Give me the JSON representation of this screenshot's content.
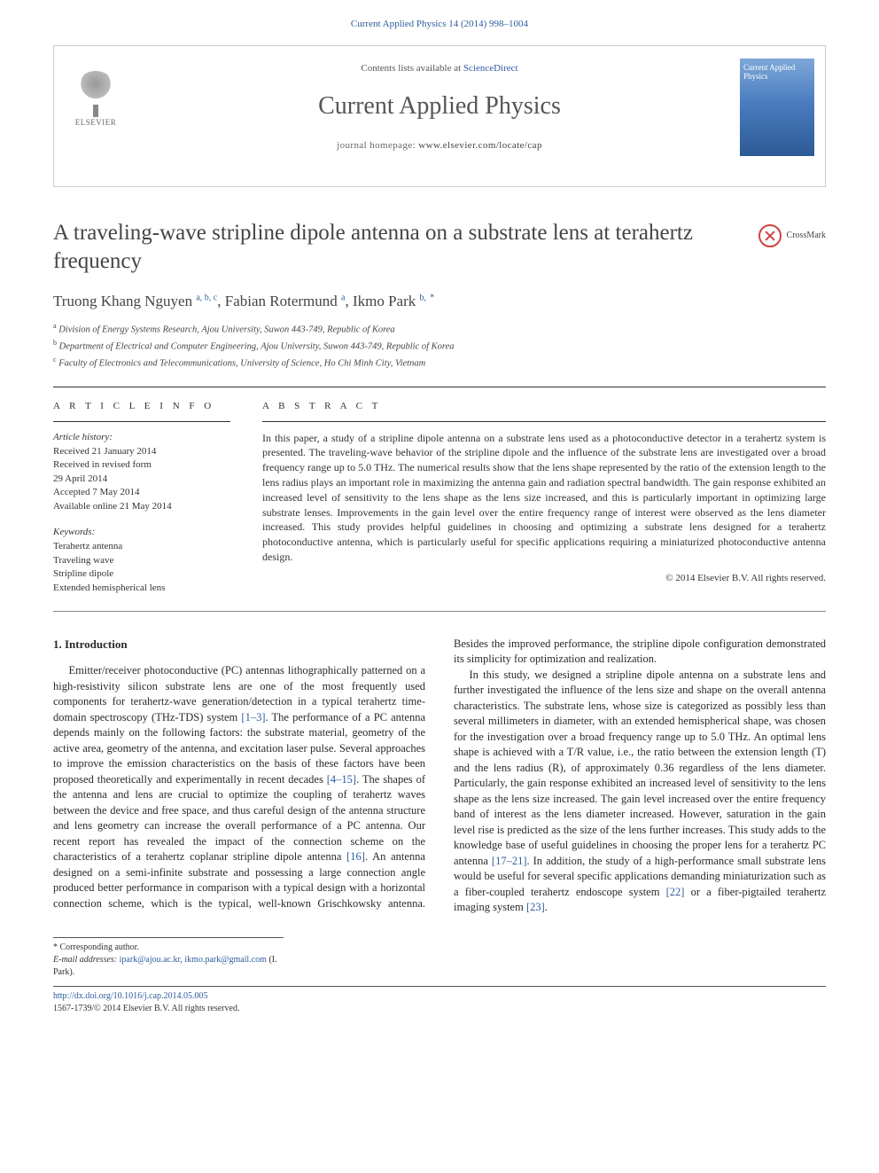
{
  "header": {
    "citation": "Current Applied Physics 14 (2014) 998–1004",
    "contents_prefix": "Contents lists available at ",
    "contents_link": "ScienceDirect",
    "journal": "Current Applied Physics",
    "homepage_prefix": "journal homepage: ",
    "homepage_url": "www.elsevier.com/locate/cap",
    "elsevier_label": "ELSEVIER",
    "cover_title": "Current Applied Physics"
  },
  "crossmark": "CrossMark",
  "title": "A traveling-wave stripline dipole antenna on a substrate lens at terahertz frequency",
  "authors": {
    "a1_name": "Truong Khang Nguyen",
    "a1_aff": "a, b, c",
    "a2_name": "Fabian Rotermund",
    "a2_aff": "a",
    "a3_name": "Ikmo Park",
    "a3_aff": "b,",
    "star": "*"
  },
  "affiliations": {
    "a": "Division of Energy Systems Research, Ajou University, Suwon 443-749, Republic of Korea",
    "b": "Department of Electrical and Computer Engineering, Ajou University, Suwon 443-749, Republic of Korea",
    "c": "Faculty of Electronics and Telecommunications, University of Science, Ho Chi Minh City, Vietnam"
  },
  "info": {
    "label": "A R T I C L E   I N F O",
    "history_label": "Article history:",
    "h1": "Received 21 January 2014",
    "h2": "Received in revised form",
    "h3": "29 April 2014",
    "h4": "Accepted 7 May 2014",
    "h5": "Available online 21 May 2014",
    "kw_label": "Keywords:",
    "k1": "Terahertz antenna",
    "k2": "Traveling wave",
    "k3": "Stripline dipole",
    "k4": "Extended hemispherical lens"
  },
  "abstract": {
    "label": "A B S T R A C T",
    "text": "In this paper, a study of a stripline dipole antenna on a substrate lens used as a photoconductive detector in a terahertz system is presented. The traveling-wave behavior of the stripline dipole and the influence of the substrate lens are investigated over a broad frequency range up to 5.0 THz. The numerical results show that the lens shape represented by the ratio of the extension length to the lens radius plays an important role in maximizing the antenna gain and radiation spectral bandwidth. The gain response exhibited an increased level of sensitivity to the lens shape as the lens size increased, and this is particularly important in optimizing large substrate lenses. Improvements in the gain level over the entire frequency range of interest were observed as the lens diameter increased. This study provides helpful guidelines in choosing and optimizing a substrate lens designed for a terahertz photoconductive antenna, which is particularly useful for specific applications requiring a miniaturized photoconductive antenna design.",
    "copyright": "© 2014 Elsevier B.V. All rights reserved."
  },
  "intro": {
    "heading": "1. Introduction",
    "p1a": "Emitter/receiver photoconductive (PC) antennas lithographically patterned on a high-resistivity silicon substrate lens are one of the most frequently used components for terahertz-wave generation/detection in a typical terahertz time-domain spectroscopy (THz-TDS) system ",
    "c1": "[1–3]",
    "p1b": ". The performance of a PC antenna depends mainly on the following factors: the substrate material, geometry of the active area, geometry of the antenna, and excitation laser pulse. Several approaches to improve the emission characteristics on the basis of these factors have been proposed theoretically and experimentally in recent decades ",
    "c2": "[4–15]",
    "p1c": ". The shapes of the antenna and lens are crucial to optimize the coupling of terahertz waves between the device and free space, and thus careful design of the antenna structure and lens geometry can increase the overall performance of a PC antenna. Our recent report has revealed the impact of the connection scheme on the characteristics of a terahertz coplanar stripline dipole antenna ",
    "c3": "[16]",
    "p1d": ". An antenna designed on a semi-infinite substrate and possessing a large connection angle produced better performance in comparison with a typical design with a horizontal connection scheme, which is the typical, well-known Grischkowsky antenna. Besides the improved performance, the stripline dipole configuration demonstrated its simplicity for optimization and realization.",
    "p2a": "In this study, we designed a stripline dipole antenna on a substrate lens and further investigated the influence of the lens size and shape on the overall antenna characteristics. The substrate lens, whose size is categorized as possibly less than several millimeters in diameter, with an extended hemispherical shape, was chosen for the investigation over a broad frequency range up to 5.0 THz. An optimal lens shape is achieved with a T/R value, i.e., the ratio between the extension length (T) and the lens radius (R), of approximately 0.36 regardless of the lens diameter. Particularly, the gain response exhibited an increased level of sensitivity to the lens shape as the lens size increased. The gain level increased over the entire frequency band of interest as the lens diameter increased. However, saturation in the gain level rise is predicted as the size of the lens further increases. This study adds to the knowledge base of useful guidelines in choosing the proper lens for a terahertz PC antenna ",
    "c4": "[17–21]",
    "p2b": ". In addition, the study of a high-performance small substrate lens would be useful for several specific applications demanding miniaturization such as a fiber-coupled terahertz endoscope system ",
    "c5": "[22]",
    "p2c": " or a fiber-pigtailed terahertz imaging system ",
    "c6": "[23]",
    "p2d": "."
  },
  "corr": {
    "label": "* Corresponding author.",
    "email_label": "E-mail addresses: ",
    "e1": "ipark@ajou.ac.kr",
    "sep": ", ",
    "e2": "ikmo.park@gmail.com",
    "tail": " (I. Park)."
  },
  "footer": {
    "doi": "http://dx.doi.org/10.1016/j.cap.2014.05.005",
    "issn": "1567-1739/© 2014 Elsevier B.V. All rights reserved."
  },
  "colors": {
    "link": "#2e5c9e",
    "text": "#2a2a2a",
    "mutegray": "#555555"
  }
}
